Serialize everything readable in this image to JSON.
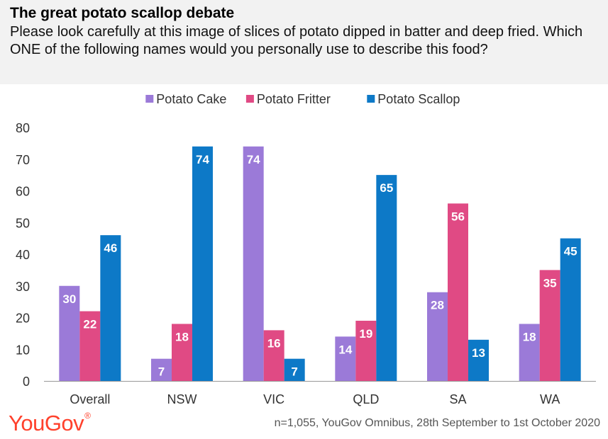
{
  "header": {
    "title": "The great potato scallop debate",
    "subtitle": "Please look carefully at this image of slices of potato dipped in batter and deep fried. Which ONE of the following names would you personally use to describe this food?"
  },
  "footer": {
    "logo": "YouGov",
    "note": "n=1,055, YouGov Omnibus, 28th September to 1st October 2020"
  },
  "chart_data": {
    "type": "bar",
    "categories": [
      "Overall",
      "NSW",
      "VIC",
      "QLD",
      "SA",
      "WA"
    ],
    "series": [
      {
        "name": "Potato Cake",
        "color": "#9b7ad8",
        "values": [
          30,
          7,
          74,
          14,
          28,
          18
        ]
      },
      {
        "name": "Potato Fritter",
        "color": "#e04a84",
        "values": [
          22,
          18,
          16,
          19,
          56,
          35
        ]
      },
      {
        "name": "Potato Scallop",
        "color": "#0d79c7",
        "values": [
          46,
          74,
          7,
          65,
          13,
          45
        ]
      }
    ],
    "ylim": [
      0,
      80
    ],
    "yticks": [
      0,
      10,
      20,
      30,
      40,
      50,
      60,
      70,
      80
    ],
    "legend": "top-center",
    "grid": false
  }
}
